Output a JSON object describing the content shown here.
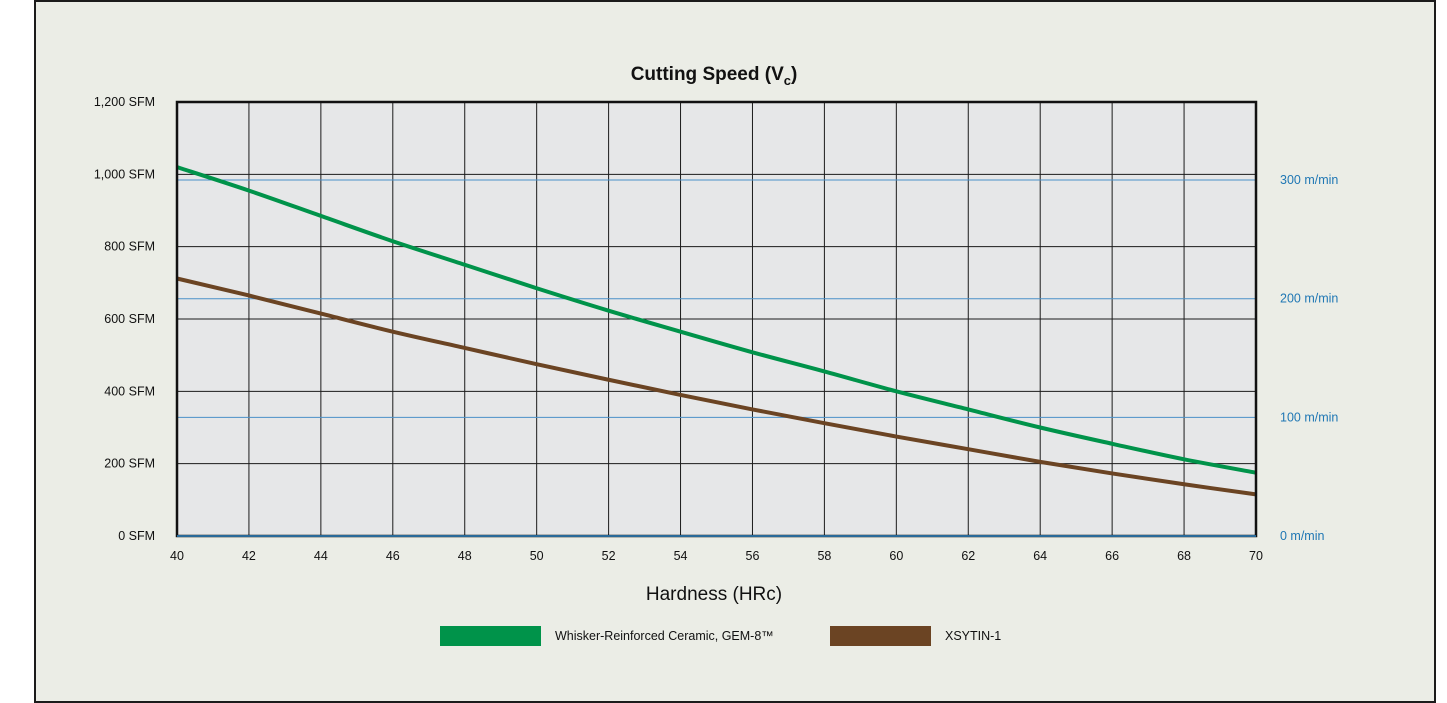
{
  "chart_data": {
    "type": "line",
    "title": "Cutting Speed (V",
    "title_sub": "c",
    "title_close": ")",
    "xlabel": "Hardness (HRc)",
    "x": [
      40,
      42,
      44,
      46,
      48,
      50,
      52,
      54,
      56,
      58,
      60,
      62,
      64,
      66,
      68,
      70
    ],
    "xlim": [
      40,
      70
    ],
    "ylim": [
      0,
      1200
    ],
    "y_ticks": [
      0,
      200,
      400,
      600,
      800,
      1000,
      1200
    ],
    "y_tick_labels": [
      "0 SFM",
      "200 SFM",
      "400 SFM",
      "600 SFM",
      "800 SFM",
      "1,000 SFM",
      "1,200 SFM"
    ],
    "y2_ticks": [
      0,
      100,
      200,
      300
    ],
    "y2_tick_labels": [
      "0 m/min",
      "100 m/min",
      "200 m/min",
      "300 m/min"
    ],
    "y2_unit_factor": 3.2808,
    "grid": true,
    "legend_position": "bottom",
    "series": [
      {
        "name": "Whisker-Reinforced Ceramic, GEM-8™",
        "color": "#00934a",
        "values": [
          1020,
          955,
          885,
          815,
          750,
          685,
          623,
          565,
          508,
          455,
          400,
          350,
          300,
          255,
          212,
          175
        ]
      },
      {
        "name": "XSYTIN-1",
        "color": "#6b4423",
        "values": [
          712,
          665,
          615,
          565,
          520,
          475,
          432,
          390,
          350,
          312,
          275,
          240,
          205,
          173,
          143,
          115
        ]
      }
    ]
  }
}
